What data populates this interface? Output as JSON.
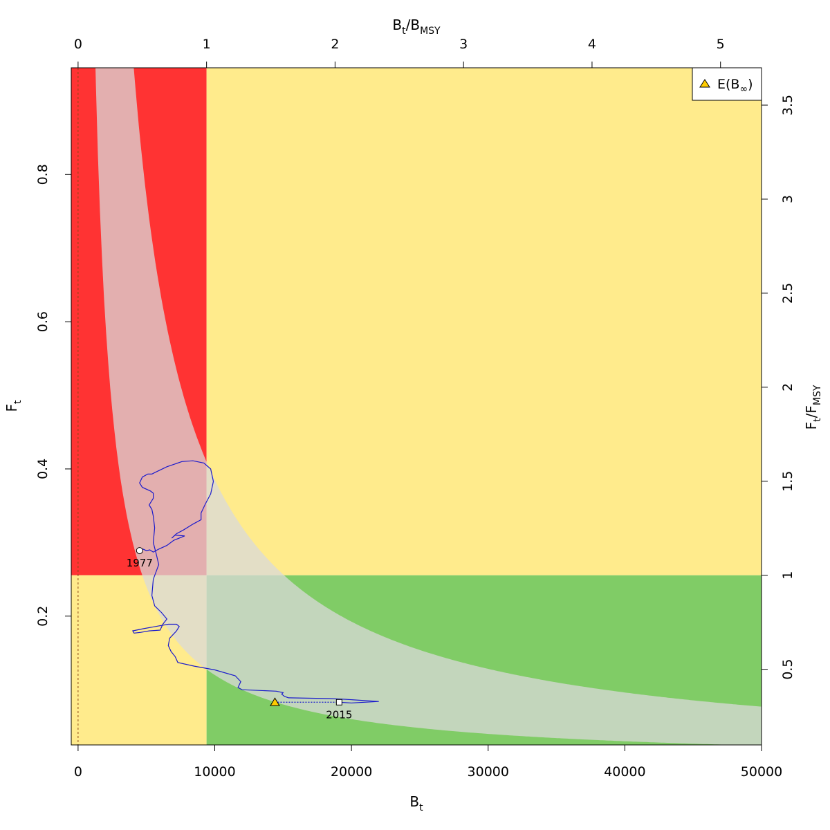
{
  "chart_data": {
    "type": "scatter",
    "subtype": "kobe-phase-plot",
    "x_axis": {
      "label_main": "B",
      "label_sub": "t",
      "lim": [
        -500,
        50000
      ],
      "ticks": [
        0,
        10000,
        20000,
        30000,
        40000,
        50000
      ],
      "tick_labels": [
        "0",
        "10000",
        "20000",
        "30000",
        "40000",
        "50000"
      ]
    },
    "y_axis": {
      "label_main": "F",
      "label_sub": "t",
      "lim": [
        0.025,
        0.945
      ],
      "ticks": [
        0.2,
        0.4,
        0.6,
        0.8
      ],
      "tick_labels": [
        "0.2",
        "0.4",
        "0.6",
        "0.8"
      ]
    },
    "x_top_axis": {
      "label_main": "B",
      "label_sub": "t",
      "label_main2": "B",
      "label_sub2": "MSY",
      "ticks": [
        0,
        1,
        2,
        3,
        4,
        5
      ],
      "tick_labels": [
        "0",
        "1",
        "2",
        "3",
        "4",
        "5"
      ]
    },
    "y_right_axis": {
      "label_main": "F",
      "label_sub": "t",
      "label_main2": "F",
      "label_sub2": "MSY",
      "ticks": [
        0.5,
        1,
        1.5,
        2,
        2.5,
        3,
        3.5
      ],
      "tick_labels": [
        "0.5",
        "1",
        "1.5",
        "2",
        "2.5",
        "3",
        "3.5"
      ]
    },
    "bmsy": 9400,
    "fmsy": 0.2555,
    "regions": {
      "overfished_overfishing": "#ff3333",
      "warning": "#ffeb8c",
      "sustainable": "#80cc66"
    },
    "msy_band": {
      "color": "#d9d9d9",
      "opacity": 0.75,
      "upper_product": 3850,
      "lower_product": 1200
    },
    "trajectory": {
      "color": "#1a1acc",
      "points": [
        [
          4500,
          0.289
        ],
        [
          4750,
          0.291
        ],
        [
          5000,
          0.289
        ],
        [
          5250,
          0.29
        ],
        [
          5500,
          0.287
        ],
        [
          5900,
          0.291
        ],
        [
          6500,
          0.296
        ],
        [
          7000,
          0.303
        ],
        [
          7800,
          0.309
        ],
        [
          7100,
          0.31
        ],
        [
          6850,
          0.306
        ],
        [
          7200,
          0.312
        ],
        [
          7700,
          0.317
        ],
        [
          8400,
          0.325
        ],
        [
          9000,
          0.331
        ],
        [
          9000,
          0.34
        ],
        [
          9300,
          0.352
        ],
        [
          9700,
          0.366
        ],
        [
          9900,
          0.383
        ],
        [
          9700,
          0.4
        ],
        [
          9200,
          0.408
        ],
        [
          8400,
          0.411
        ],
        [
          7600,
          0.41
        ],
        [
          6500,
          0.403
        ],
        [
          5600,
          0.395
        ],
        [
          5400,
          0.393
        ],
        [
          5100,
          0.393
        ],
        [
          4700,
          0.389
        ],
        [
          4500,
          0.381
        ],
        [
          4700,
          0.375
        ],
        [
          5300,
          0.37
        ],
        [
          5500,
          0.367
        ],
        [
          5500,
          0.36
        ],
        [
          5200,
          0.351
        ],
        [
          5400,
          0.345
        ],
        [
          5500,
          0.336
        ],
        [
          5600,
          0.32
        ],
        [
          5500,
          0.3
        ],
        [
          5700,
          0.286
        ],
        [
          5900,
          0.27
        ],
        [
          5500,
          0.25
        ],
        [
          5400,
          0.228
        ],
        [
          5600,
          0.214
        ],
        [
          6100,
          0.205
        ],
        [
          6500,
          0.196
        ],
        [
          6200,
          0.189
        ],
        [
          6000,
          0.181
        ],
        [
          5200,
          0.18
        ],
        [
          4600,
          0.178
        ],
        [
          4100,
          0.177
        ],
        [
          4000,
          0.18
        ],
        [
          4800,
          0.183
        ],
        [
          5700,
          0.186
        ],
        [
          6600,
          0.189
        ],
        [
          7200,
          0.189
        ],
        [
          7400,
          0.186
        ],
        [
          7200,
          0.18
        ],
        [
          6700,
          0.17
        ],
        [
          6600,
          0.16
        ],
        [
          6800,
          0.152
        ],
        [
          7100,
          0.145
        ],
        [
          7300,
          0.137
        ],
        [
          8500,
          0.132
        ],
        [
          10000,
          0.127
        ],
        [
          11500,
          0.119
        ],
        [
          11900,
          0.111
        ],
        [
          11700,
          0.103
        ],
        [
          12000,
          0.1
        ],
        [
          14500,
          0.098
        ],
        [
          15000,
          0.096
        ],
        [
          14900,
          0.094
        ],
        [
          15100,
          0.091
        ],
        [
          15400,
          0.089
        ],
        [
          18400,
          0.088
        ],
        [
          19500,
          0.087
        ],
        [
          22000,
          0.084
        ],
        [
          20000,
          0.082
        ],
        [
          19100,
          0.083
        ]
      ]
    },
    "start_point": {
      "x": 4500,
      "y": 0.289,
      "label": "1977"
    },
    "end_point": {
      "x": 19100,
      "y": 0.083,
      "label": "2015"
    },
    "expected_point": {
      "x": 14400,
      "y": 0.083,
      "color": "#ffcc00"
    },
    "legend": {
      "position": "top-right",
      "label_prefix": "E(B",
      "label_sub": "∞",
      "label_suffix": ")"
    }
  }
}
